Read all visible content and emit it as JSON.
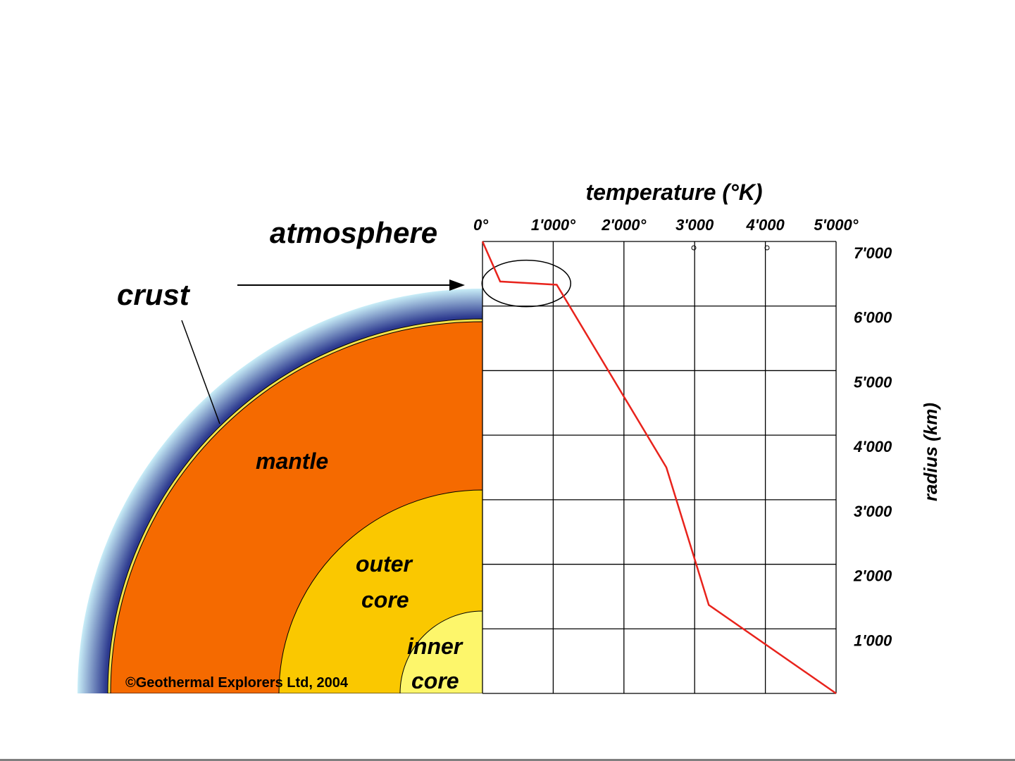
{
  "labels": {
    "atmosphere": "atmosphere",
    "crust": "crust",
    "mantle": "mantle",
    "outer_core_line1": "outer",
    "outer_core_line2": "core",
    "inner_core_line1": "inner",
    "inner_core_line2": "core"
  },
  "copyright": "©Geothermal Explorers Ltd, 2004",
  "colors": {
    "atmosphere_outer": "#c9eef8",
    "atmosphere_inner": "#2d3a8f",
    "crust": "#f5e34a",
    "mantle": "#f56a00",
    "outer_core": "#fac800",
    "inner_core": "#fdf66b",
    "temperature_line": "#e8231c",
    "grid": "#000000"
  },
  "chart_data": {
    "type": "line",
    "title": "temperature (°K)",
    "xlabel": "temperature (°K)",
    "ylabel": "radius (km)",
    "x_ticks": [
      {
        "value": 0,
        "label": "0°"
      },
      {
        "value": 1000,
        "label": "1'000°"
      },
      {
        "value": 2000,
        "label": "2'000°"
      },
      {
        "value": 3000,
        "label": "3'000"
      },
      {
        "value": 4000,
        "label": "4'000"
      },
      {
        "value": 5000,
        "label": "5'000°"
      }
    ],
    "y_ticks": [
      {
        "value": 7000,
        "label": "7'000"
      },
      {
        "value": 6000,
        "label": "6'000"
      },
      {
        "value": 5000,
        "label": "5'000"
      },
      {
        "value": 4000,
        "label": "4'000"
      },
      {
        "value": 3000,
        "label": "3'000"
      },
      {
        "value": 2000,
        "label": "2'000"
      },
      {
        "value": 1000,
        "label": "1'000"
      }
    ],
    "xlim": [
      0,
      5000
    ],
    "ylim": [
      0,
      7000
    ],
    "grid": true,
    "series": [
      {
        "points": [
          {
            "x": 0,
            "y": 7000
          },
          {
            "x": 250,
            "y": 6380
          },
          {
            "x": 1050,
            "y": 6330
          },
          {
            "x": 2600,
            "y": 3500
          },
          {
            "x": 3200,
            "y": 1370
          },
          {
            "x": 5000,
            "y": 0
          }
        ]
      }
    ],
    "highlight": {
      "shape": "ellipse",
      "x": 620,
      "y": 6350
    }
  }
}
